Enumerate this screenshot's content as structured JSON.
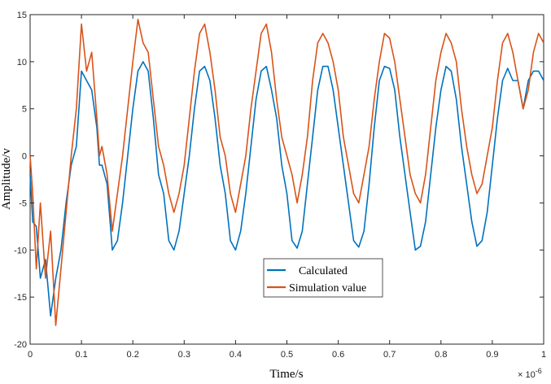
{
  "chart_data": {
    "type": "line",
    "title": "",
    "xlabel": "Time/s",
    "ylabel": "Amplitude/v",
    "x_exponent_label": "× 10",
    "x_exponent_power": "-6",
    "xlim": [
      0,
      1
    ],
    "ylim": [
      -20,
      15
    ],
    "x_ticks": [
      "0",
      "0.1",
      "0.2",
      "0.3",
      "0.4",
      "0.5",
      "0.6",
      "0.7",
      "0.8",
      "0.9",
      "1"
    ],
    "y_ticks": [
      "15",
      "10",
      "5",
      "0",
      "-5",
      "-10",
      "-15",
      "-20"
    ],
    "grid": false,
    "legend_position": "center-bottom",
    "series": [
      {
        "name": "Calculated",
        "color": "#0072BD",
        "x": [
          0,
          0.005,
          0.012,
          0.02,
          0.03,
          0.04,
          0.05,
          0.06,
          0.07,
          0.08,
          0.09,
          0.1,
          0.11,
          0.12,
          0.13,
          0.135,
          0.14,
          0.15,
          0.16,
          0.17,
          0.18,
          0.19,
          0.2,
          0.21,
          0.22,
          0.23,
          0.24,
          0.25,
          0.26,
          0.27,
          0.28,
          0.29,
          0.3,
          0.31,
          0.32,
          0.33,
          0.34,
          0.35,
          0.36,
          0.37,
          0.38,
          0.39,
          0.4,
          0.41,
          0.42,
          0.43,
          0.44,
          0.45,
          0.46,
          0.47,
          0.48,
          0.49,
          0.5,
          0.51,
          0.52,
          0.53,
          0.54,
          0.55,
          0.56,
          0.57,
          0.58,
          0.59,
          0.6,
          0.61,
          0.62,
          0.63,
          0.64,
          0.65,
          0.66,
          0.67,
          0.68,
          0.69,
          0.7,
          0.71,
          0.72,
          0.73,
          0.74,
          0.75,
          0.76,
          0.77,
          0.78,
          0.79,
          0.8,
          0.81,
          0.82,
          0.83,
          0.84,
          0.85,
          0.86,
          0.87,
          0.88,
          0.89,
          0.9,
          0.91,
          0.92,
          0.93,
          0.94,
          0.95,
          0.96,
          0.97,
          0.98,
          0.99,
          1.0
        ],
        "y": [
          -2,
          -7,
          -7.5,
          -13,
          -11,
          -17,
          -13,
          -10,
          -5,
          -1,
          1,
          9,
          8,
          7,
          3,
          -1,
          -1,
          -3,
          -10,
          -9,
          -5,
          0,
          5,
          9,
          10,
          9,
          4,
          -2,
          -4,
          -9,
          -10,
          -8,
          -4,
          0,
          5,
          9,
          9.5,
          8,
          4,
          -1,
          -4,
          -9,
          -10,
          -8,
          -4,
          1,
          6,
          9,
          9.5,
          7,
          4,
          -1,
          -4,
          -9,
          -9.8,
          -8,
          -3,
          2,
          7,
          9.5,
          9.5,
          7,
          3,
          -1,
          -5,
          -9,
          -9.7,
          -8,
          -3,
          3,
          8,
          9.5,
          9.3,
          7,
          2,
          -2,
          -6,
          -10,
          -9.6,
          -7,
          -2,
          3,
          7,
          9.5,
          9,
          6,
          1,
          -3,
          -7,
          -9.6,
          -9,
          -6,
          -1,
          4,
          8,
          9.3,
          8,
          8,
          5,
          8,
          9,
          9,
          8
        ]
      },
      {
        "name": "Simulation value",
        "color": "#D95319",
        "x": [
          0,
          0.005,
          0.012,
          0.02,
          0.03,
          0.04,
          0.05,
          0.06,
          0.07,
          0.08,
          0.09,
          0.1,
          0.11,
          0.12,
          0.13,
          0.135,
          0.14,
          0.15,
          0.16,
          0.17,
          0.18,
          0.19,
          0.2,
          0.21,
          0.22,
          0.23,
          0.24,
          0.25,
          0.26,
          0.27,
          0.28,
          0.29,
          0.3,
          0.31,
          0.32,
          0.33,
          0.34,
          0.35,
          0.36,
          0.37,
          0.38,
          0.39,
          0.4,
          0.41,
          0.42,
          0.43,
          0.44,
          0.45,
          0.46,
          0.47,
          0.48,
          0.49,
          0.5,
          0.51,
          0.52,
          0.53,
          0.54,
          0.55,
          0.56,
          0.57,
          0.58,
          0.59,
          0.6,
          0.61,
          0.62,
          0.63,
          0.64,
          0.65,
          0.66,
          0.67,
          0.68,
          0.69,
          0.7,
          0.71,
          0.72,
          0.73,
          0.74,
          0.75,
          0.76,
          0.77,
          0.78,
          0.79,
          0.8,
          0.81,
          0.82,
          0.83,
          0.84,
          0.85,
          0.86,
          0.87,
          0.88,
          0.89,
          0.9,
          0.91,
          0.92,
          0.93,
          0.94,
          0.95,
          0.96,
          0.97,
          0.98,
          0.99,
          1.0
        ],
        "y": [
          0,
          -4,
          -12,
          -5,
          -13,
          -8,
          -18,
          -12,
          -6,
          0,
          5,
          14,
          9,
          11,
          4,
          0,
          1,
          -2,
          -8,
          -4,
          0,
          5,
          10,
          14.5,
          12,
          11,
          6,
          1,
          -1,
          -4,
          -6,
          -4,
          -1,
          4,
          9,
          13,
          14,
          11,
          7,
          2,
          0,
          -4,
          -6,
          -3,
          0,
          5,
          9,
          13,
          14,
          11,
          6,
          2,
          0,
          -2,
          -5,
          -2,
          2,
          8,
          12,
          13,
          12,
          10,
          7,
          2,
          -1,
          -4,
          -5,
          -2,
          1,
          6,
          10,
          13,
          12.5,
          10,
          6,
          2,
          -2,
          -4,
          -5,
          -2,
          3,
          8,
          11,
          13,
          12,
          10,
          5,
          1,
          -2,
          -4,
          -3,
          0,
          3,
          8,
          12,
          13,
          11,
          8,
          5,
          7,
          11,
          13,
          12
        ]
      }
    ]
  }
}
